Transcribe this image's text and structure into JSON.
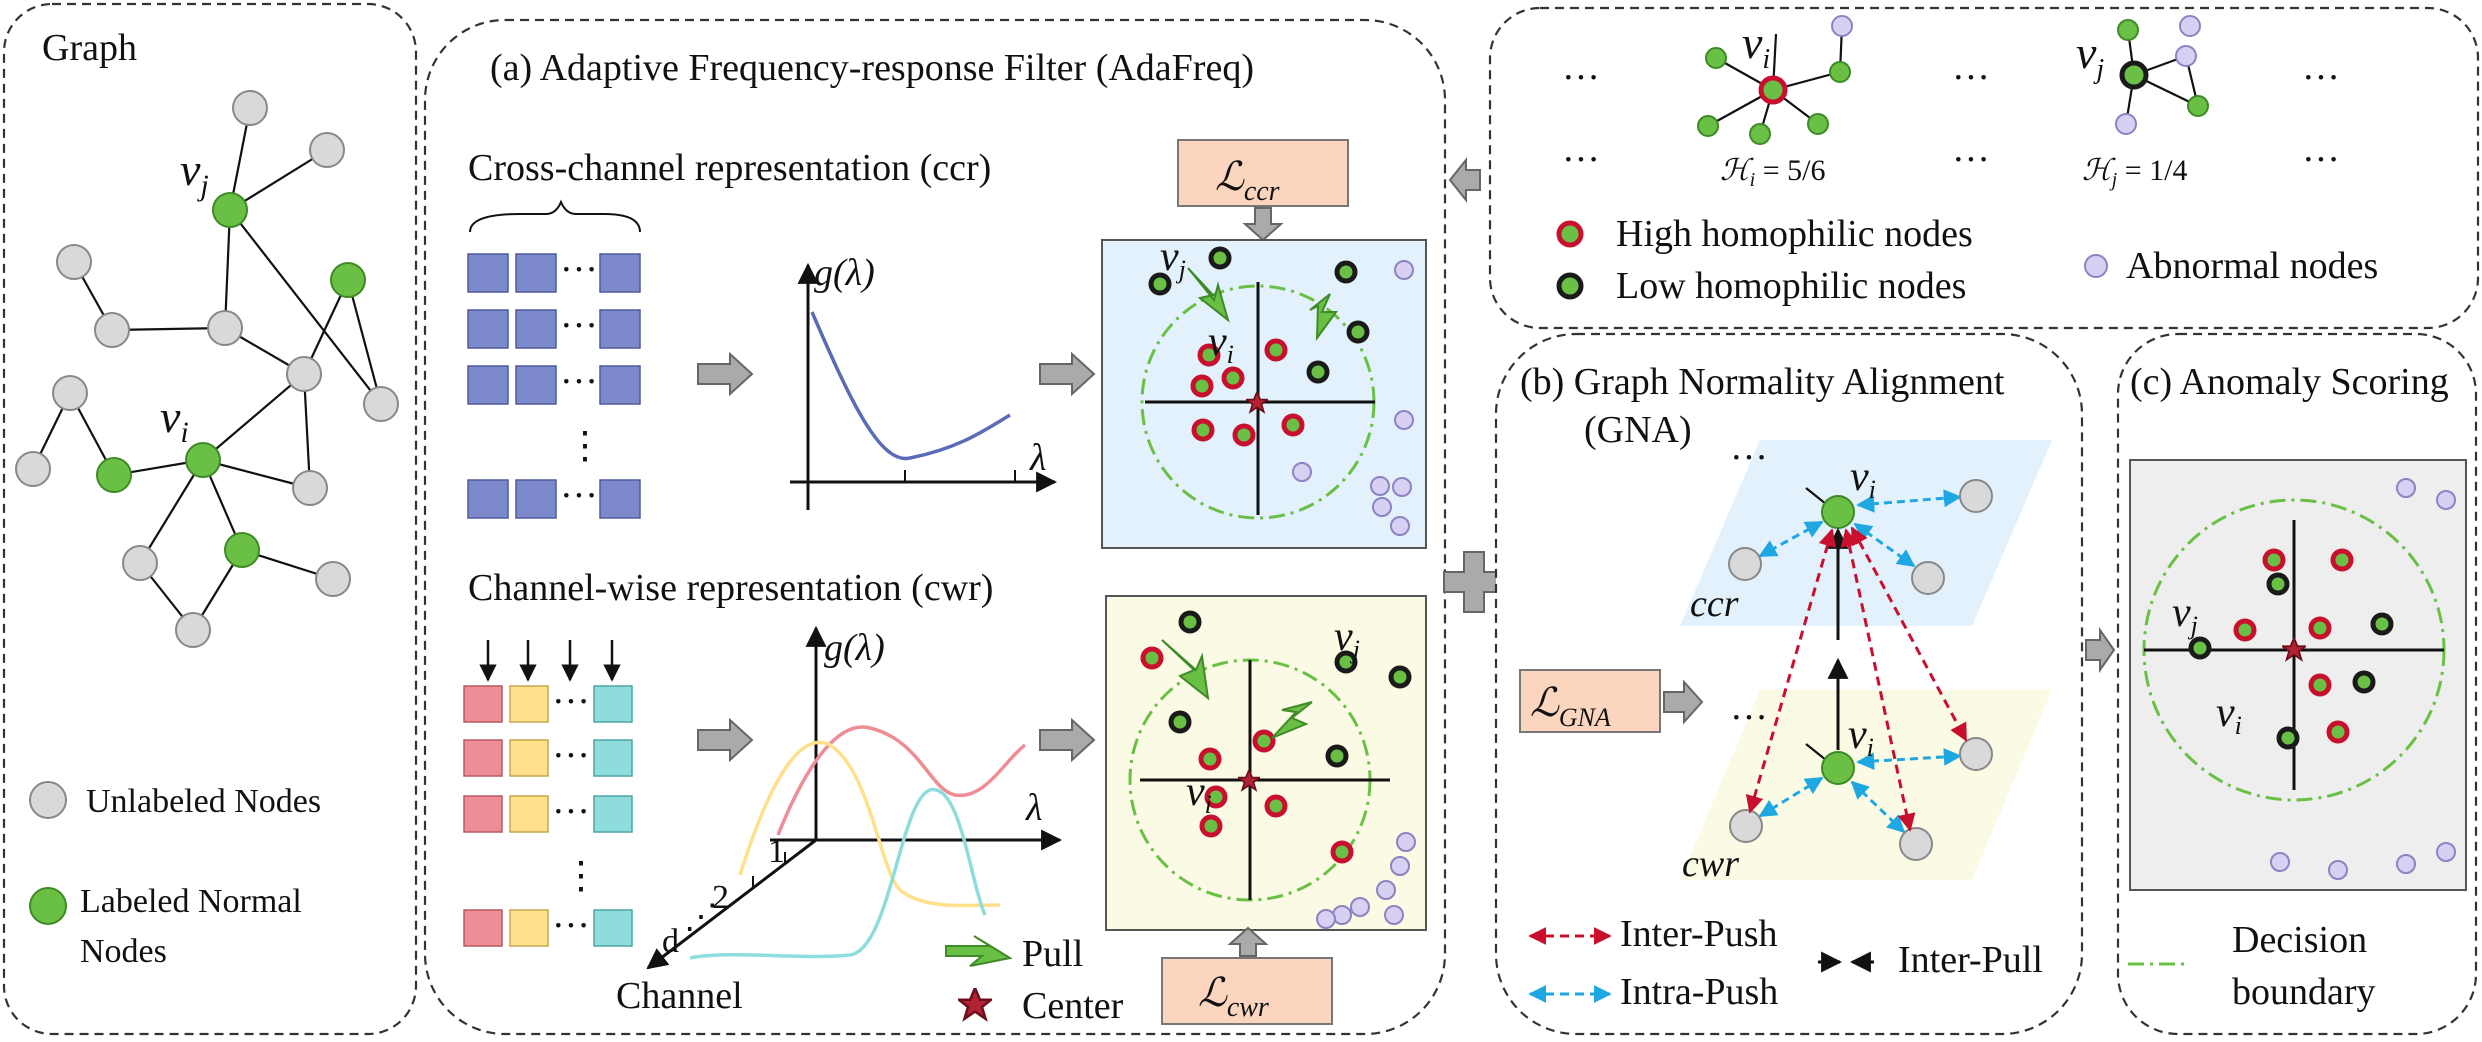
{
  "graph_panel": {
    "title": "Graph",
    "node_vj": "v",
    "node_vj_sub": "j",
    "node_vi": "v",
    "node_vi_sub": "i",
    "legend_unlabeled": "Unlabeled Nodes",
    "legend_labeled_line1": "Labeled Normal",
    "legend_labeled_line2": "Nodes"
  },
  "adafreq_panel": {
    "title": "(a) Adaptive Frequency-response Filter (AdaFreq)",
    "ccr_title": "Cross-channel representation (ccr)",
    "cwr_title": "Channel-wise representation (cwr)",
    "ellipsis": "···",
    "vdots": "⋮",
    "g_lambda": "g(λ)",
    "lambda": "λ",
    "loss_ccr": "ℒ",
    "loss_ccr_sub": "ccr",
    "loss_cwr": "ℒ",
    "loss_cwr_sub": "cwr",
    "channel_label": "Channel",
    "channel_ticks": [
      "1",
      "2",
      "d"
    ],
    "pull_label": "Pull",
    "center_label": "Center"
  },
  "homophily_panel": {
    "ellipsis": "···",
    "hi_label": "ℋ",
    "hi_sub": "i",
    "hi_value": " = 5/6",
    "hj_label": "ℋ",
    "hj_sub": "j",
    "hj_value": " = 1/4",
    "legend_high": "High homophilic nodes",
    "legend_low": "Low homophilic nodes",
    "legend_abnormal": "Abnormal nodes"
  },
  "gna_panel": {
    "title_line1": "(b) Graph Normality Alignment",
    "title_line2": "(GNA)",
    "ccr": "ccr",
    "cwr": "cwr",
    "loss_gna": "ℒ",
    "loss_gna_sub": "GNA",
    "inter_push": "Inter-Push",
    "intra_push": "Intra-Push",
    "inter_pull": "Inter-Pull"
  },
  "scoring_panel": {
    "title": "(c) Anomaly Scoring",
    "decision_line1": "Decision",
    "decision_line2": "boundary"
  },
  "colors": {
    "normal_green": "#6abf45",
    "high_homophily_ring": "#c8102e",
    "low_homophily_ring": "#1a1a1a",
    "abnormal_purple": "#d7d0f2",
    "ccr_block": "#7b88c9",
    "cwr_pink": "#ef8d96",
    "cwr_yellow": "#ffe08a",
    "cwr_cyan": "#8fdcdc",
    "loss_box": "#fbd5bd",
    "inter_push_red": "#c8102e",
    "intra_push_blue": "#1ea7e1"
  }
}
